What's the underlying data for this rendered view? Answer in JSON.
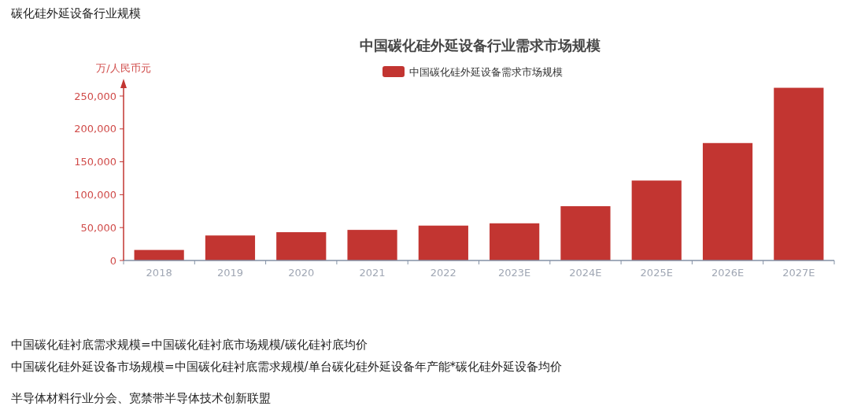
{
  "chart_data": {
    "type": "bar",
    "title": "中国碳化硅外延设备行业需求市场规模",
    "ylabel": "万/人民币元",
    "categories": [
      "2018",
      "2019",
      "2020",
      "2021",
      "2022",
      "2023E",
      "2024E",
      "2025E",
      "2026E",
      "2027E"
    ],
    "series": [
      {
        "name": "中国碳化硅外延设备需求市场规模",
        "color": "#c23531",
        "values": [
          16000,
          38000,
          43000,
          46500,
          53000,
          56500,
          82500,
          121500,
          178500,
          262500
        ]
      }
    ],
    "ylim": [
      0,
      270000
    ],
    "yticks": [
      0,
      {
        "value": 50000,
        "label": "50,000"
      },
      {
        "value": 100000,
        "label": "100,000"
      },
      {
        "value": 150000,
        "label": "150,000"
      },
      {
        "value": 200000,
        "label": "200,000"
      },
      {
        "value": 250000,
        "label": "250,000"
      }
    ],
    "grid": false,
    "legend": "top",
    "annotations": [
      "碳化硅外延设备行业规模",
      "中国碳化硅衬底需求规模=中国碳化硅衬底市场规模/碳化硅衬底均价",
      "中国碳化硅外延设备市场规模=中国碳化硅衬底需求规模/单台碳化硅外延设备年产能*碳化硅外延设备均价",
      "半导体材料行业分会、宽禁带半导体技术创新联盟"
    ]
  }
}
